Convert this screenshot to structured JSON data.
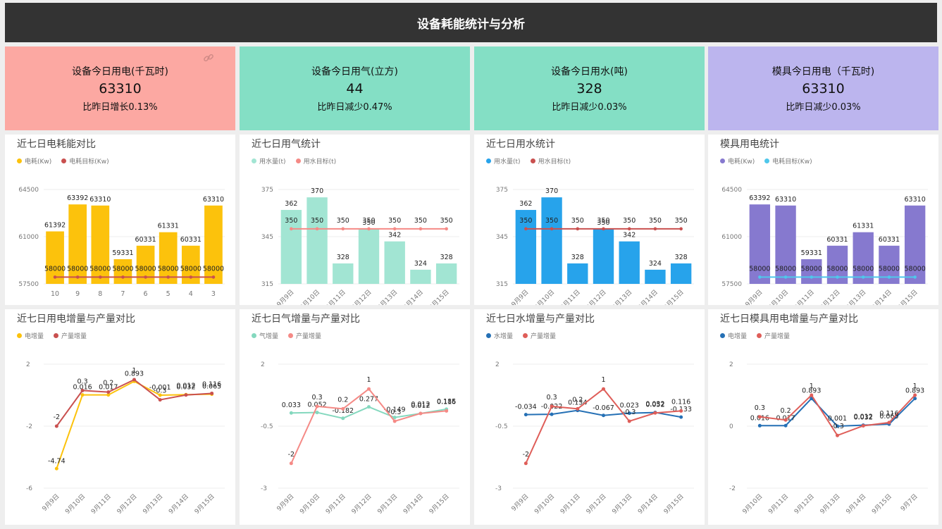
{
  "header": {
    "title": "设备耗能统计与分析"
  },
  "kpis": [
    {
      "title": "设备今日用电(千瓦时)",
      "value": "63310",
      "change": "比昨日增长0.13%",
      "color": "#fca8a2"
    },
    {
      "title": "设备今日用气(立方)",
      "value": "44",
      "change": "比昨日减少0.47%",
      "color": "#84dfc5"
    },
    {
      "title": "设备今日用水(吨)",
      "value": "328",
      "change": "比昨日减少0.03%",
      "color": "#84dfc5"
    },
    {
      "title": "模具今日用电（千瓦时)",
      "value": "63310",
      "change": "比昨日减少0.03%",
      "color": "#bcb5ee"
    }
  ],
  "chart_data": [
    {
      "type": "bar",
      "title": "近七日电耗能对比",
      "categories": [
        "10",
        "9",
        "8",
        "7",
        "6",
        "5",
        "4",
        "3"
      ],
      "series": [
        {
          "name": "电耗(Kw)",
          "color": "#fcc20c",
          "values": [
            61392,
            63392,
            63310,
            59331,
            60331,
            61331,
            60331,
            63310
          ]
        },
        {
          "name": "电耗目标(Kw)",
          "color": "#c9504f",
          "kind": "line",
          "values": [
            58000,
            58000,
            58000,
            58000,
            58000,
            58000,
            58000,
            58000
          ]
        }
      ],
      "ylim": [
        57500,
        64500
      ],
      "yticks": [
        "57500",
        "61000",
        "64500"
      ],
      "rotate_x": false
    },
    {
      "type": "bar",
      "title": "近七日用气统计",
      "categories": [
        "9月9日",
        "9月10日",
        "9月11日",
        "9月12日",
        "9月13日",
        "9月14日",
        "9月15日"
      ],
      "series": [
        {
          "name": "用水量(t)",
          "color": "#a2e5d3",
          "values": [
            362,
            370,
            328,
            350,
            342,
            324,
            328
          ]
        },
        {
          "name": "用水目标(t)",
          "color": "#f58a86",
          "kind": "line",
          "values": [
            350,
            350,
            350,
            350,
            350,
            350,
            350
          ]
        }
      ],
      "ylim": [
        315,
        375
      ],
      "yticks": [
        "315",
        "345",
        "375"
      ],
      "rotate_x": true
    },
    {
      "type": "bar",
      "title": "近七日用水统计",
      "categories": [
        "9月9日",
        "9月10日",
        "9月11日",
        "9月12日",
        "9月13日",
        "9月14日",
        "9月15日"
      ],
      "series": [
        {
          "name": "用水量(t)",
          "color": "#27a3eb",
          "values": [
            362,
            370,
            328,
            350,
            342,
            324,
            328
          ]
        },
        {
          "name": "用水目标(t)",
          "color": "#c9504f",
          "kind": "line",
          "values": [
            350,
            350,
            350,
            350,
            350,
            350,
            350
          ]
        }
      ],
      "ylim": [
        315,
        375
      ],
      "yticks": [
        "315",
        "345",
        "375"
      ],
      "rotate_x": true
    },
    {
      "type": "bar",
      "title": "模具用电统计",
      "categories": [
        "9月9日",
        "9月10日",
        "9月11日",
        "9月12日",
        "9月13日",
        "9月14日",
        "9月15日"
      ],
      "series": [
        {
          "name": "电耗(Kw)",
          "color": "#8679cf",
          "values": [
            63392,
            63310,
            59331,
            60331,
            61331,
            60331,
            63310
          ]
        },
        {
          "name": "电耗目标(Kw)",
          "color": "#4fc7eb",
          "kind": "line",
          "values": [
            58000,
            58000,
            58000,
            58000,
            58000,
            58000,
            58000
          ]
        }
      ],
      "ylim": [
        57500,
        64500
      ],
      "yticks": [
        "57500",
        "61000",
        "64500"
      ],
      "rotate_x": true
    },
    {
      "type": "line",
      "title": "近七日用电增量与产量对比",
      "categories": [
        "9月9日",
        "9月10日",
        "9月11日",
        "9月12日",
        "9月13日",
        "9月14日",
        "9月15日"
      ],
      "series": [
        {
          "name": "电增量",
          "color": "#fcc20c",
          "values": [
            -4.74,
            0.016,
            0.017,
            0.893,
            -0.001,
            0.032,
            0.065
          ]
        },
        {
          "name": "产量增量",
          "color": "#c9504f",
          "values": [
            -2,
            0.3,
            0.2,
            1,
            -0.3,
            0.012,
            0.116
          ]
        }
      ],
      "ylim": [
        -6,
        2
      ],
      "yticks": [
        "-6",
        "-2",
        "2"
      ]
    },
    {
      "type": "line",
      "title": "近七日气增量与产量对比",
      "categories": [
        "9月9日",
        "9月10日",
        "9月11日",
        "9月12日",
        "9月13日",
        "9月14日",
        "9月15日"
      ],
      "series": [
        {
          "name": "气增量",
          "color": "#84d8be",
          "values": [
            0.033,
            0.052,
            -0.182,
            0.277,
            -0.149,
            0.012,
            0.185
          ]
        },
        {
          "name": "产量增量",
          "color": "#f58a86",
          "values": [
            -2,
            0.3,
            0.2,
            1,
            -0.3,
            0.012,
            0.116
          ]
        }
      ],
      "ylim": [
        -3,
        2
      ],
      "yticks": [
        "-3",
        "-0.5",
        "2"
      ]
    },
    {
      "type": "line",
      "title": "近七日水增量与产量对比",
      "categories": [
        "9月9日",
        "9月10日",
        "9月11日",
        "9月12日",
        "9月13日",
        "9月14日",
        "9月15日"
      ],
      "series": [
        {
          "name": "水增量",
          "color": "#2570b5",
          "values": [
            -0.034,
            -0.022,
            0.134,
            -0.067,
            0.023,
            0.052,
            -0.133
          ]
        },
        {
          "name": "产量增量",
          "color": "#df5e59",
          "values": [
            -2,
            0.3,
            0.2,
            1,
            -0.3,
            0.032,
            0.116
          ]
        }
      ],
      "ylim": [
        -3,
        2
      ],
      "yticks": [
        "-3",
        "-0.5",
        "2"
      ]
    },
    {
      "type": "line",
      "title": "近七日模具用电增量与产量对比",
      "categories": [
        "9月10日",
        "9月11日",
        "9月12日",
        "9月13日",
        "9月14日",
        "9月15日",
        "9月7日"
      ],
      "series": [
        {
          "name": "电增量",
          "color": "#2570b5",
          "values": [
            0.016,
            0.017,
            0.893,
            0.001,
            0.032,
            0.065,
            0.893
          ]
        },
        {
          "name": "产量增量",
          "color": "#df5e59",
          "values": [
            0.3,
            0.2,
            1,
            -0.3,
            0.012,
            0.116,
            1
          ]
        }
      ],
      "ylim": [
        -2,
        2
      ],
      "yticks": [
        "-2",
        "0",
        "2"
      ]
    }
  ]
}
